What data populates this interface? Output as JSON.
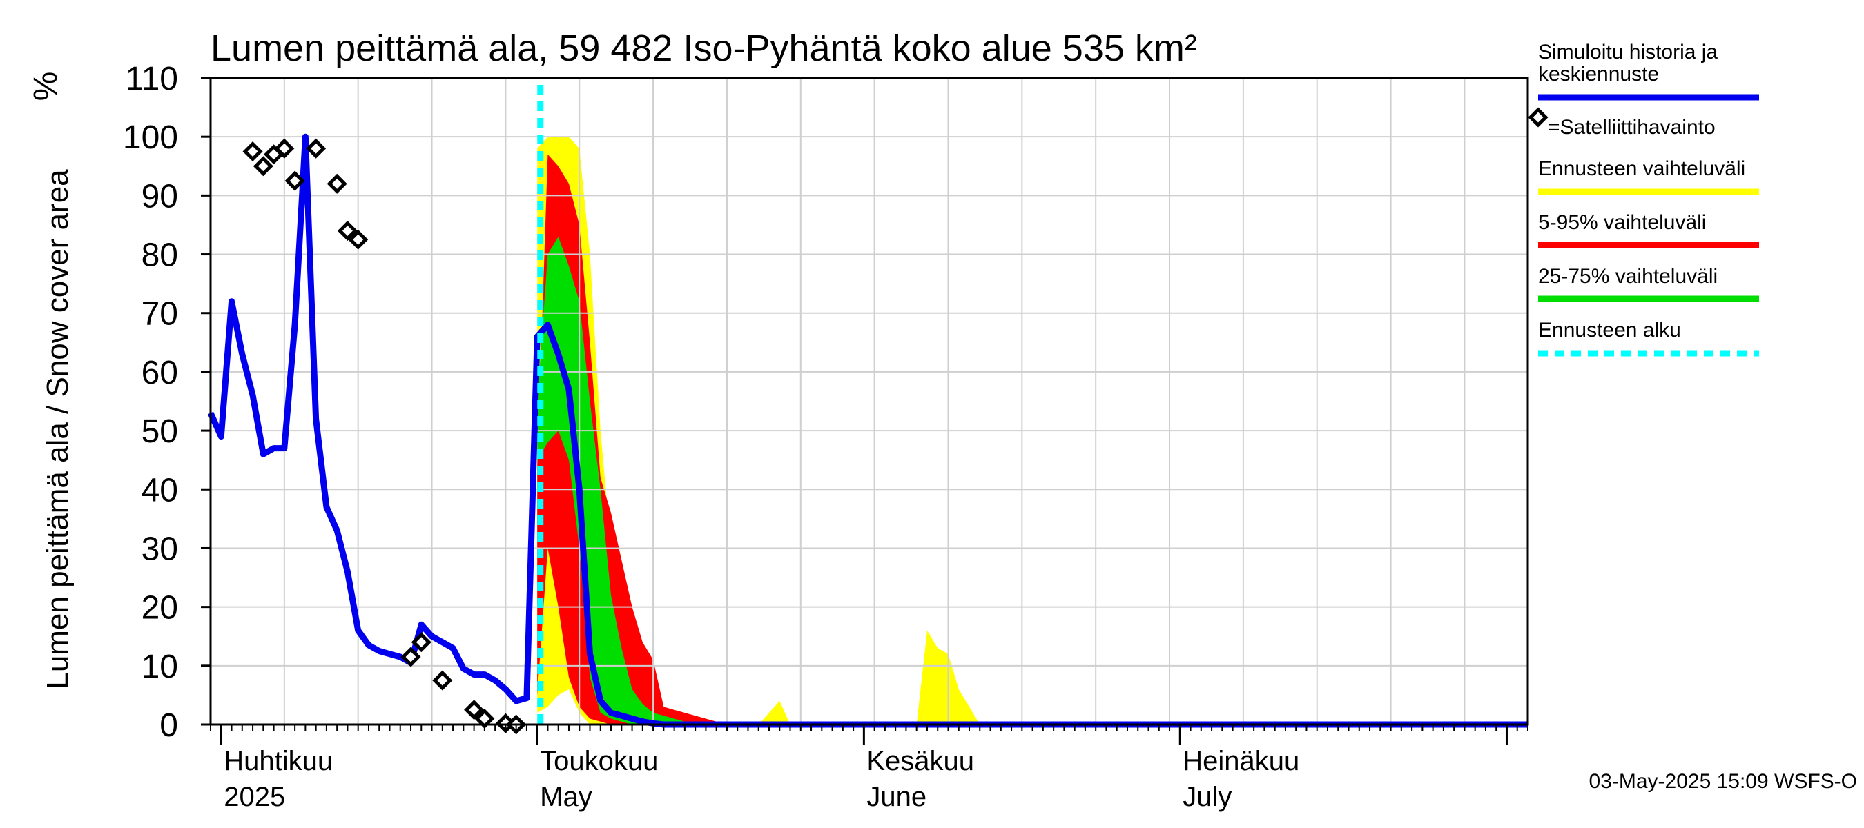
{
  "chart_data": {
    "type": "area",
    "title": "Lumen peittämä ala, 59 482 Iso-Pyhäntä koko alue 535 km²",
    "ylabel": "Lumen peittämä ala / Snow cover area",
    "yunit": "%",
    "ylim": [
      0,
      110
    ],
    "yticks": [
      0,
      10,
      20,
      30,
      40,
      50,
      60,
      70,
      80,
      90,
      100,
      110
    ],
    "xlim": [
      0,
      125
    ],
    "x_unit": "days since 2025-03-31",
    "month_labels": [
      {
        "day": 1,
        "fi": "Huhtikuu",
        "en": "2025"
      },
      {
        "day": 31,
        "fi": "Toukokuu",
        "en": "May"
      },
      {
        "day": 62,
        "fi": "Kesäkuu",
        "en": "June"
      },
      {
        "day": 92,
        "fi": "Heinäkuu",
        "en": "July"
      }
    ],
    "month_starts": [
      1,
      31,
      62,
      92,
      123
    ],
    "forecast_start": 31.3,
    "series": [
      {
        "name": "Simuloitu historia ja keskiennuste",
        "color": "#0000ee",
        "points": [
          [
            0,
            53
          ],
          [
            1,
            49
          ],
          [
            2,
            72
          ],
          [
            3,
            63
          ],
          [
            4,
            56
          ],
          [
            5,
            46
          ],
          [
            6,
            47
          ],
          [
            7,
            47
          ],
          [
            8,
            68
          ],
          [
            9,
            100
          ],
          [
            10,
            52
          ],
          [
            11,
            37
          ],
          [
            12,
            33
          ],
          [
            13,
            26
          ],
          [
            14,
            16
          ],
          [
            15,
            13.5
          ],
          [
            16,
            12.5
          ],
          [
            17,
            12
          ],
          [
            18,
            11.5
          ],
          [
            19,
            10.5
          ],
          [
            20,
            17
          ],
          [
            21,
            15
          ],
          [
            22,
            14
          ],
          [
            23,
            13
          ],
          [
            24,
            9.5
          ],
          [
            25,
            8.5
          ],
          [
            26,
            8.5
          ],
          [
            27,
            7.5
          ],
          [
            28,
            6
          ],
          [
            29,
            4
          ],
          [
            30,
            4.5
          ],
          [
            31,
            66
          ],
          [
            32,
            68
          ],
          [
            33,
            63
          ],
          [
            34,
            57
          ],
          [
            35,
            40
          ],
          [
            36,
            12
          ],
          [
            37,
            4
          ],
          [
            38,
            2
          ],
          [
            39,
            1.5
          ],
          [
            40,
            1
          ],
          [
            41,
            0.5
          ],
          [
            42,
            0.2
          ],
          [
            43,
            0
          ],
          [
            125,
            0
          ]
        ]
      }
    ],
    "satellite": {
      "name": "=Satelliittihavainto",
      "points": [
        [
          4,
          97.5
        ],
        [
          5,
          95
        ],
        [
          6,
          97
        ],
        [
          7,
          98
        ],
        [
          8,
          92.5
        ],
        [
          10,
          98
        ],
        [
          12,
          92
        ],
        [
          13,
          84
        ],
        [
          14,
          82.5
        ],
        [
          19,
          11.5
        ],
        [
          20,
          14
        ],
        [
          22,
          7.5
        ],
        [
          25,
          2.5
        ],
        [
          26,
          1
        ],
        [
          28,
          0.2
        ],
        [
          29,
          0
        ]
      ]
    },
    "bands": [
      {
        "name": "Ennusteen vaihteluväli",
        "color": "#ffff00",
        "upper": [
          [
            31,
            98
          ],
          [
            32,
            100
          ],
          [
            33,
            100
          ],
          [
            34,
            100
          ],
          [
            35,
            98
          ],
          [
            36,
            80
          ],
          [
            37,
            50
          ],
          [
            38,
            30
          ],
          [
            39,
            18
          ],
          [
            40,
            8
          ],
          [
            41,
            3
          ],
          [
            42,
            4
          ],
          [
            43,
            3
          ],
          [
            44,
            1.5
          ],
          [
            45,
            0.5
          ],
          [
            46,
            0.5
          ],
          [
            47,
            0.5
          ],
          [
            48,
            0.5
          ],
          [
            49,
            0.5
          ],
          [
            50,
            0.5
          ],
          [
            51,
            0.5
          ],
          [
            52,
            0
          ],
          [
            53,
            2
          ],
          [
            54,
            4
          ],
          [
            55,
            0
          ],
          [
            67,
            0
          ],
          [
            68,
            16
          ],
          [
            69,
            13
          ],
          [
            70,
            12
          ],
          [
            71,
            6
          ],
          [
            72,
            3
          ],
          [
            73,
            0
          ],
          [
            125,
            0
          ]
        ],
        "lower": [
          [
            31,
            2
          ],
          [
            32,
            3
          ],
          [
            33,
            5
          ],
          [
            34,
            6
          ],
          [
            35,
            2
          ],
          [
            36,
            0
          ],
          [
            125,
            0
          ]
        ]
      },
      {
        "name": "5-95% vaihteluväli",
        "color": "#ff0000",
        "upper": [
          [
            31,
            44
          ],
          [
            32,
            97
          ],
          [
            33,
            95
          ],
          [
            34,
            92
          ],
          [
            35,
            85
          ],
          [
            36,
            65
          ],
          [
            37,
            42
          ],
          [
            38,
            36
          ],
          [
            39,
            28
          ],
          [
            40,
            20
          ],
          [
            41,
            14
          ],
          [
            42,
            11
          ],
          [
            43,
            3
          ],
          [
            44,
            2.5
          ],
          [
            45,
            2
          ],
          [
            46,
            1.5
          ],
          [
            47,
            1
          ],
          [
            48,
            0.5
          ],
          [
            49,
            0.2
          ],
          [
            50,
            0
          ],
          [
            125,
            0
          ]
        ],
        "lower": [
          [
            31,
            5
          ],
          [
            32,
            30
          ],
          [
            33,
            20
          ],
          [
            34,
            8
          ],
          [
            35,
            3
          ],
          [
            36,
            1
          ],
          [
            37,
            0.5
          ],
          [
            38,
            0
          ],
          [
            125,
            0
          ]
        ]
      },
      {
        "name": "25-75% vaihteluväli",
        "color": "#00dd00",
        "upper": [
          [
            31,
            55
          ],
          [
            32,
            80
          ],
          [
            33,
            83
          ],
          [
            34,
            78
          ],
          [
            35,
            72
          ],
          [
            36,
            55
          ],
          [
            37,
            40
          ],
          [
            38,
            22
          ],
          [
            39,
            13
          ],
          [
            40,
            6
          ],
          [
            41,
            3.5
          ],
          [
            42,
            2
          ],
          [
            43,
            1.5
          ],
          [
            44,
            1
          ],
          [
            45,
            0.5
          ],
          [
            46,
            0
          ],
          [
            125,
            0
          ]
        ],
        "lower": [
          [
            31,
            45
          ],
          [
            32,
            48
          ],
          [
            33,
            50
          ],
          [
            34,
            45
          ],
          [
            35,
            30
          ],
          [
            36,
            8
          ],
          [
            37,
            2
          ],
          [
            38,
            1
          ],
          [
            39,
            0.5
          ],
          [
            40,
            0
          ],
          [
            125,
            0
          ]
        ]
      }
    ],
    "legend": [
      {
        "label": "Simuloitu historia ja keskiennuste",
        "color": "#0000ee",
        "style": "line"
      },
      {
        "label": "=Satelliittihavainto",
        "color": "#000000",
        "style": "diamond"
      },
      {
        "label": "Ennusteen vaihteluväli",
        "color": "#ffff00",
        "style": "line"
      },
      {
        "label": "5-95% vaihteluväli",
        "color": "#ff0000",
        "style": "line"
      },
      {
        "label": "25-75% vaihteluväli",
        "color": "#00dd00",
        "style": "line"
      },
      {
        "label": "Ennusteen alku",
        "color": "#00ffff",
        "style": "dashed"
      }
    ],
    "legend_position": "right",
    "footer": "03-May-2025 15:09 WSFS-O"
  }
}
